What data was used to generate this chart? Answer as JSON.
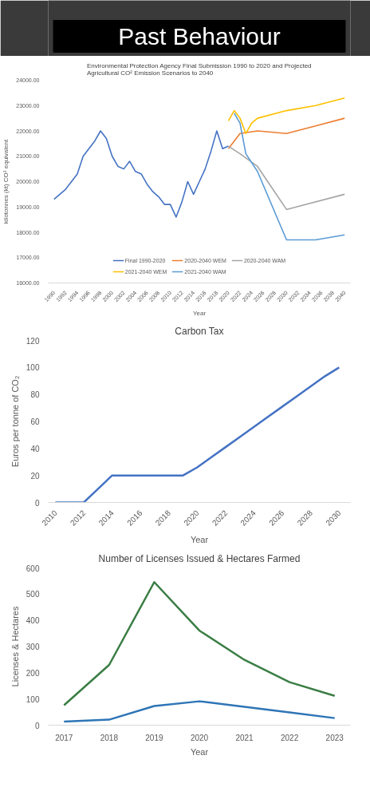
{
  "chart_data": [
    {
      "type": "line",
      "annotations": [
        "Past Behaviour"
      ],
      "title": "Environmental Protection Agency Final Submission 1990 to 2020 and Projected Agricultural CO² Emission Scenarios to 2040",
      "xlabel": "Year",
      "ylabel": "kilotonnes (kt) CO² equivalent",
      "xlim": [
        1989,
        2041
      ],
      "xticks": [
        1990,
        1992,
        1994,
        1996,
        1998,
        2000,
        2002,
        2004,
        2006,
        2008,
        2010,
        2012,
        2014,
        2016,
        2018,
        2020,
        2022,
        2024,
        2026,
        2028,
        2030,
        2032,
        2034,
        2036,
        2038,
        2040
      ],
      "ylim": [
        16000,
        24000
      ],
      "yticks": [
        {
          "value": 16000,
          "label": "16000.00"
        },
        {
          "value": 17000,
          "label": "17000.00"
        },
        {
          "value": 18000,
          "label": "18000.00"
        },
        {
          "value": 19000,
          "label": "19000.00"
        },
        {
          "value": 20000,
          "label": "20000.00"
        },
        {
          "value": 21000,
          "label": "21000.00"
        },
        {
          "value": 22000,
          "label": "22000.00"
        },
        {
          "value": 23000,
          "label": "23000.00"
        },
        {
          "value": 24000,
          "label": "24000.00"
        }
      ],
      "grid": false,
      "legend": "bottom",
      "series": [
        {
          "name": "Final 1990-2020",
          "color": "#4472c4",
          "x": [
            1990,
            1991,
            1992,
            1993,
            1994,
            1995,
            1996,
            1997,
            1998,
            1999,
            2000,
            2001,
            2002,
            2003,
            2004,
            2005,
            2006,
            2007,
            2008,
            2009,
            2010,
            2011,
            2012,
            2013,
            2014,
            2015,
            2016,
            2017,
            2018,
            2019,
            2020
          ],
          "values": [
            19300,
            19500,
            19700,
            20000,
            20300,
            21000,
            21300,
            21600,
            22000,
            21700,
            21000,
            20600,
            20500,
            20800,
            20400,
            20300,
            19900,
            19600,
            19400,
            19100,
            19100,
            18600,
            19200,
            20000,
            19500,
            20000,
            20500,
            21200,
            22000,
            21300,
            21400
          ]
        },
        {
          "name": "2020-2040 WEM",
          "color": "#ed7d31",
          "x": [
            2020,
            2022,
            2025,
            2030,
            2035,
            2040
          ],
          "values": [
            21300,
            21900,
            22000,
            21900,
            22200,
            22500
          ]
        },
        {
          "name": "2020-2040 WAM",
          "color": "#a5a5a5",
          "x": [
            2020,
            2022,
            2025,
            2030,
            2040
          ],
          "values": [
            21400,
            21100,
            20600,
            18900,
            19500
          ]
        },
        {
          "name": "2021-2040 WEM",
          "color": "#ffc000",
          "x": [
            2020,
            2021,
            2022,
            2023,
            2024,
            2025,
            2030,
            2035,
            2040
          ],
          "values": [
            22400,
            22800,
            22500,
            21900,
            22300,
            22500,
            22800,
            23000,
            23300
          ]
        },
        {
          "name": "2021-2040 WAM",
          "color": "#5b9bd5",
          "x": [
            2021,
            2022,
            2023,
            2025,
            2030,
            2035,
            2040
          ],
          "values": [
            22700,
            22300,
            21100,
            20400,
            17700,
            17700,
            17900
          ]
        }
      ]
    },
    {
      "type": "line",
      "title": "Carbon Tax",
      "xlabel": "Year",
      "ylabel": "Euros per tonne of CO₂",
      "xlim": [
        2009.5,
        2030.8
      ],
      "xticks": [
        2010,
        2012,
        2014,
        2016,
        2018,
        2020,
        2022,
        2024,
        2026,
        2028,
        2030
      ],
      "ylim": [
        0,
        120
      ],
      "yticks": [
        0,
        20,
        40,
        60,
        80,
        100,
        120
      ],
      "grid": false,
      "x": [
        2010,
        2011,
        2012,
        2013,
        2014,
        2015,
        2016,
        2017,
        2018,
        2019,
        2020,
        2021,
        2022,
        2023,
        2024,
        2025,
        2026,
        2027,
        2028,
        2029,
        2030
      ],
      "series": [
        {
          "color": "#4472c4",
          "values": [
            0,
            0,
            0,
            10,
            20,
            20,
            20,
            20,
            20,
            20,
            26,
            33.5,
            41,
            48.5,
            56,
            63.5,
            71,
            78.5,
            86,
            93.5,
            100
          ]
        }
      ]
    },
    {
      "type": "line",
      "title": "Number of Licenses Issued & Hectares Farmed",
      "xlabel": "Year",
      "ylabel": "Licenses & Hectares",
      "categories": [
        "2017",
        "2018",
        "2019",
        "2020",
        "2021",
        "2022",
        "2023"
      ],
      "ylim": [
        0,
        600
      ],
      "yticks": [
        0,
        100,
        200,
        300,
        400,
        500,
        600
      ],
      "grid": false,
      "series": [
        {
          "color": "#3a7d44",
          "values": [
            76,
            230,
            546,
            361,
            249,
            164,
            112
          ]
        },
        {
          "color": "#2e75b6",
          "values": [
            14,
            21,
            73,
            91,
            70,
            49,
            27
          ]
        }
      ]
    }
  ]
}
